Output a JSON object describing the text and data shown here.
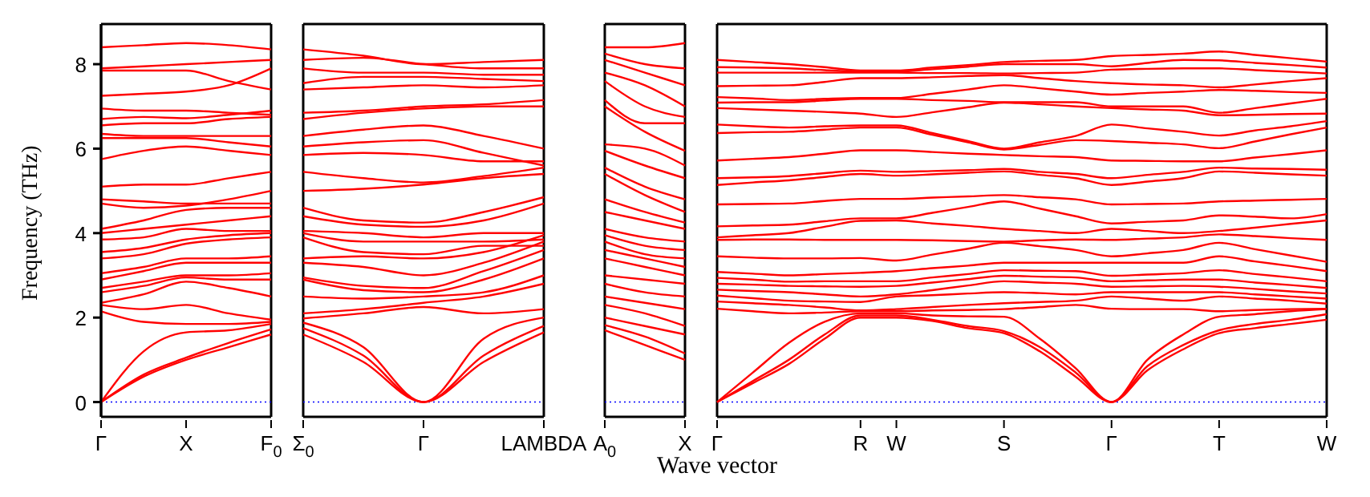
{
  "chart_data": [
    {
      "type": "line",
      "ylabel": "Frequency (THz)",
      "categories": [
        "Γ",
        null,
        "X",
        null,
        "F$_{0}$"
      ],
      "ylim": [
        -0.35,
        8.95
      ],
      "yticks": [
        0,
        2,
        4,
        6,
        8
      ],
      "marker": "none",
      "line_style": "solid",
      "ref_lines": [
        {
          "axis": "y",
          "value": 0,
          "color": "#0000ff",
          "line_style": "dotted"
        }
      ],
      "series": [
        {
          "color": "#ff0000",
          "values": [
            0,
            0.6,
            1.0,
            1.3,
            1.6
          ]
        },
        {
          "color": "#ff0000",
          "values": [
            0,
            0.65,
            1.05,
            1.4,
            1.72
          ]
        },
        {
          "color": "#ff0000",
          "values": [
            0,
            1.2,
            1.65,
            1.7,
            1.85
          ]
        },
        {
          "color": "#ff0000",
          "values": [
            2.15,
            1.9,
            1.85,
            1.85,
            1.9
          ]
        },
        {
          "color": "#ff0000",
          "values": [
            2.3,
            2.2,
            2.3,
            2.1,
            1.95
          ]
        },
        {
          "color": "#ff0000",
          "values": [
            2.35,
            2.55,
            2.85,
            2.7,
            2.5
          ]
        },
        {
          "color": "#ff0000",
          "values": [
            2.6,
            2.75,
            2.95,
            2.9,
            2.9
          ]
        },
        {
          "color": "#ff0000",
          "values": [
            2.7,
            2.85,
            3.0,
            3.0,
            3.05
          ]
        },
        {
          "color": "#ff0000",
          "values": [
            2.9,
            3.1,
            3.3,
            3.3,
            3.3
          ]
        },
        {
          "color": "#ff0000",
          "values": [
            3.05,
            3.2,
            3.4,
            3.4,
            3.45
          ]
        },
        {
          "color": "#ff0000",
          "values": [
            3.4,
            3.5,
            3.75,
            3.85,
            3.9
          ]
        },
        {
          "color": "#ff0000",
          "values": [
            3.55,
            3.65,
            3.85,
            3.95,
            4.0
          ]
        },
        {
          "color": "#ff0000",
          "values": [
            3.85,
            3.9,
            4.1,
            4.05,
            4.05
          ]
        },
        {
          "color": "#ff0000",
          "values": [
            4.0,
            4.1,
            4.2,
            4.3,
            4.4
          ]
        },
        {
          "color": "#ff0000",
          "values": [
            4.1,
            4.3,
            4.55,
            4.6,
            4.6
          ]
        },
        {
          "color": "#ff0000",
          "values": [
            4.7,
            4.6,
            4.65,
            4.8,
            5.0
          ]
        },
        {
          "color": "#ff0000",
          "values": [
            4.8,
            4.75,
            4.7,
            4.7,
            4.7
          ]
        },
        {
          "color": "#ff0000",
          "values": [
            5.1,
            5.15,
            5.15,
            5.3,
            5.45
          ]
        },
        {
          "color": "#ff0000",
          "values": [
            5.75,
            5.95,
            6.05,
            5.95,
            5.85
          ]
        },
        {
          "color": "#ff0000",
          "values": [
            6.25,
            6.25,
            6.25,
            6.15,
            6.05
          ]
        },
        {
          "color": "#ff0000",
          "values": [
            6.35,
            6.3,
            6.3,
            6.3,
            6.3
          ]
        },
        {
          "color": "#ff0000",
          "values": [
            6.55,
            6.6,
            6.6,
            6.7,
            6.75
          ]
        },
        {
          "color": "#ff0000",
          "values": [
            6.7,
            6.75,
            6.72,
            6.8,
            6.9
          ]
        },
        {
          "color": "#ff0000",
          "values": [
            6.95,
            6.9,
            6.9,
            6.85,
            6.8
          ]
        },
        {
          "color": "#ff0000",
          "values": [
            7.25,
            7.3,
            7.35,
            7.5,
            7.9
          ]
        },
        {
          "color": "#ff0000",
          "values": [
            7.85,
            7.85,
            7.85,
            7.6,
            7.4
          ]
        },
        {
          "color": "#ff0000",
          "values": [
            7.9,
            7.95,
            8.0,
            8.05,
            8.1
          ]
        },
        {
          "color": "#ff0000",
          "values": [
            8.4,
            8.45,
            8.5,
            8.45,
            8.35
          ]
        }
      ]
    },
    {
      "type": "line",
      "tick_labels": "x",
      "categories": [
        "Σ$_{0}$",
        null,
        "Γ",
        null,
        "LAMBDA"
      ],
      "ylim": [
        -0.35,
        8.95
      ],
      "yticks": [
        0,
        2,
        4,
        6,
        8
      ],
      "marker": "none",
      "line_style": "solid",
      "ref_lines": [
        {
          "axis": "y",
          "value": 0,
          "color": "#0000ff",
          "line_style": "dotted"
        }
      ],
      "series": [
        {
          "color": "#ff0000",
          "values": [
            1.6,
            0.95,
            0,
            0.95,
            1.65
          ]
        },
        {
          "color": "#ff0000",
          "values": [
            1.75,
            1.1,
            0,
            1.1,
            1.8
          ]
        },
        {
          "color": "#ff0000",
          "values": [
            1.88,
            1.3,
            0,
            1.5,
            2.0
          ]
        },
        {
          "color": "#ff0000",
          "values": [
            1.98,
            2.1,
            2.25,
            2.1,
            2.2
          ]
        },
        {
          "color": "#ff0000",
          "values": [
            2.1,
            2.2,
            2.35,
            2.5,
            2.8
          ]
        },
        {
          "color": "#ff0000",
          "values": [
            2.5,
            2.45,
            2.5,
            2.6,
            3.0
          ]
        },
        {
          "color": "#ff0000",
          "values": [
            2.9,
            2.65,
            2.6,
            2.9,
            3.4
          ]
        },
        {
          "color": "#ff0000",
          "values": [
            2.95,
            2.75,
            2.7,
            3.1,
            3.6
          ]
        },
        {
          "color": "#ff0000",
          "values": [
            3.3,
            3.2,
            3.0,
            3.3,
            3.8
          ]
        },
        {
          "color": "#ff0000",
          "values": [
            3.4,
            3.45,
            3.4,
            3.55,
            3.95
          ]
        },
        {
          "color": "#ff0000",
          "values": [
            3.9,
            3.55,
            3.5,
            3.7,
            3.7
          ]
        },
        {
          "color": "#ff0000",
          "values": [
            4.0,
            3.8,
            3.8,
            3.8,
            3.85
          ]
        },
        {
          "color": "#ff0000",
          "values": [
            4.05,
            4.0,
            3.9,
            4.0,
            4.0
          ]
        },
        {
          "color": "#ff0000",
          "values": [
            4.4,
            4.2,
            4.15,
            4.3,
            4.7
          ]
        },
        {
          "color": "#ff0000",
          "values": [
            4.6,
            4.3,
            4.25,
            4.5,
            4.85
          ]
        },
        {
          "color": "#ff0000",
          "values": [
            5.0,
            5.05,
            5.15,
            5.3,
            5.4
          ]
        },
        {
          "color": "#ff0000",
          "values": [
            5.45,
            5.3,
            5.2,
            5.35,
            5.55
          ]
        },
        {
          "color": "#ff0000",
          "values": [
            5.85,
            5.9,
            5.85,
            5.7,
            5.7
          ]
        },
        {
          "color": "#ff0000",
          "values": [
            6.05,
            6.15,
            6.2,
            5.9,
            5.6
          ]
        },
        {
          "color": "#ff0000",
          "values": [
            6.3,
            6.45,
            6.55,
            6.3,
            6.0
          ]
        },
        {
          "color": "#ff0000",
          "values": [
            6.7,
            6.85,
            6.95,
            7.0,
            7.0
          ]
        },
        {
          "color": "#ff0000",
          "values": [
            6.85,
            6.9,
            7.0,
            7.05,
            7.15
          ]
        },
        {
          "color": "#ff0000",
          "values": [
            7.4,
            7.45,
            7.5,
            7.45,
            7.5
          ]
        },
        {
          "color": "#ff0000",
          "values": [
            7.55,
            7.7,
            7.7,
            7.65,
            7.6
          ]
        },
        {
          "color": "#ff0000",
          "values": [
            7.9,
            7.8,
            7.8,
            7.75,
            7.75
          ]
        },
        {
          "color": "#ff0000",
          "values": [
            8.1,
            8.15,
            8.0,
            7.9,
            7.9
          ]
        },
        {
          "color": "#ff0000",
          "values": [
            8.35,
            8.2,
            8.0,
            8.05,
            8.1
          ]
        }
      ]
    },
    {
      "type": "line",
      "tick_labels": "x",
      "categories": [
        "A$_{0}$",
        null,
        "X"
      ],
      "ylim": [
        -0.35,
        8.95
      ],
      "yticks": [
        0,
        2,
        4,
        6,
        8
      ],
      "marker": "none",
      "line_style": "solid",
      "ref_lines": [
        {
          "axis": "y",
          "value": 0,
          "color": "#0000ff",
          "line_style": "dotted"
        }
      ],
      "series": [
        {
          "color": "#ff0000",
          "values": [
            1.7,
            1.35,
            1.0
          ]
        },
        {
          "color": "#ff0000",
          "values": [
            1.82,
            1.55,
            1.15
          ]
        },
        {
          "color": "#ff0000",
          "values": [
            2.0,
            1.8,
            1.6
          ]
        },
        {
          "color": "#ff0000",
          "values": [
            2.3,
            2.1,
            1.8
          ]
        },
        {
          "color": "#ff0000",
          "values": [
            2.5,
            2.35,
            2.2
          ]
        },
        {
          "color": "#ff0000",
          "values": [
            2.8,
            2.6,
            2.5
          ]
        },
        {
          "color": "#ff0000",
          "values": [
            3.0,
            2.9,
            2.8
          ]
        },
        {
          "color": "#ff0000",
          "values": [
            3.4,
            3.2,
            3.0
          ]
        },
        {
          "color": "#ff0000",
          "values": [
            3.6,
            3.4,
            3.2
          ]
        },
        {
          "color": "#ff0000",
          "values": [
            3.8,
            3.5,
            3.4
          ]
        },
        {
          "color": "#ff0000",
          "values": [
            3.95,
            3.7,
            3.6
          ]
        },
        {
          "color": "#ff0000",
          "values": [
            4.1,
            3.9,
            3.8
          ]
        },
        {
          "color": "#ff0000",
          "values": [
            4.5,
            4.3,
            4.1
          ]
        },
        {
          "color": "#ff0000",
          "values": [
            4.8,
            4.5,
            4.25
          ]
        },
        {
          "color": "#ff0000",
          "values": [
            5.4,
            4.9,
            4.5
          ]
        },
        {
          "color": "#ff0000",
          "values": [
            5.55,
            5.1,
            4.8
          ]
        },
        {
          "color": "#ff0000",
          "values": [
            5.95,
            5.6,
            5.3
          ]
        },
        {
          "color": "#ff0000",
          "values": [
            6.1,
            6.0,
            5.6
          ]
        },
        {
          "color": "#ff0000",
          "values": [
            7.0,
            6.4,
            5.95
          ]
        },
        {
          "color": "#ff0000",
          "values": [
            7.15,
            6.6,
            6.6
          ]
        },
        {
          "color": "#ff0000",
          "values": [
            7.6,
            7.0,
            6.75
          ]
        },
        {
          "color": "#ff0000",
          "values": [
            7.8,
            7.5,
            7.0
          ]
        },
        {
          "color": "#ff0000",
          "values": [
            8.1,
            7.8,
            7.5
          ]
        },
        {
          "color": "#ff0000",
          "values": [
            8.25,
            8.0,
            7.9
          ]
        },
        {
          "color": "#ff0000",
          "values": [
            8.4,
            8.4,
            8.5
          ]
        }
      ]
    },
    {
      "type": "line",
      "tick_labels": "x",
      "xlabel": "Wave vector",
      "categories": [
        "Γ",
        null,
        null,
        null,
        "R",
        "W",
        null,
        null,
        "S",
        null,
        null,
        "Γ",
        null,
        null,
        "T",
        null,
        null,
        "W"
      ],
      "ylim": [
        -0.35,
        8.95
      ],
      "yticks": [
        0,
        2,
        4,
        6,
        8
      ],
      "marker": "none",
      "line_style": "solid",
      "ref_lines": [
        {
          "axis": "y",
          "value": 0,
          "color": "#0000ff",
          "line_style": "dotted"
        }
      ],
      "series": [
        {
          "color": "#ff0000",
          "values": [
            0,
            0.45,
            0.9,
            1.5,
            2.0,
            2.0,
            1.92,
            1.75,
            1.63,
            1.2,
            0.6,
            0,
            0.75,
            1.25,
            1.63,
            1.75,
            1.85,
            1.95
          ]
        },
        {
          "color": "#ff0000",
          "values": [
            0,
            0.5,
            1.0,
            1.6,
            2.05,
            2.05,
            1.95,
            1.8,
            1.68,
            1.3,
            0.7,
            0,
            0.85,
            1.35,
            1.7,
            1.85,
            1.95,
            2.08
          ]
        },
        {
          "color": "#ff0000",
          "values": [
            0,
            0.7,
            1.4,
            1.9,
            2.1,
            2.1,
            2.05,
            2.03,
            2.02,
            1.5,
            0.8,
            0,
            1.0,
            1.6,
            2.02,
            2.08,
            2.15,
            2.2
          ]
        },
        {
          "color": "#ff0000",
          "values": [
            2.21,
            2.15,
            2.1,
            2.12,
            2.15,
            2.15,
            2.17,
            2.18,
            2.2,
            2.25,
            2.3,
            2.21,
            2.2,
            2.2,
            2.15,
            2.18,
            2.2,
            2.21
          ]
        },
        {
          "color": "#ff0000",
          "values": [
            2.38,
            2.34,
            2.3,
            2.24,
            2.17,
            2.2,
            2.25,
            2.3,
            2.34,
            2.37,
            2.4,
            2.5,
            2.45,
            2.4,
            2.5,
            2.45,
            2.4,
            2.33
          ]
        },
        {
          "color": "#ff0000",
          "values": [
            2.52,
            2.46,
            2.4,
            2.38,
            2.37,
            2.5,
            2.53,
            2.57,
            2.6,
            2.58,
            2.55,
            2.6,
            2.6,
            2.6,
            2.6,
            2.55,
            2.5,
            2.45
          ]
        },
        {
          "color": "#ff0000",
          "values": [
            2.66,
            2.63,
            2.6,
            2.55,
            2.5,
            2.55,
            2.65,
            2.76,
            2.86,
            2.83,
            2.8,
            2.73,
            2.74,
            2.75,
            2.73,
            2.68,
            2.62,
            2.57
          ]
        },
        {
          "color": "#ff0000",
          "values": [
            2.8,
            2.78,
            2.75,
            2.74,
            2.73,
            2.75,
            2.83,
            2.91,
            2.99,
            2.97,
            2.95,
            2.86,
            2.88,
            2.9,
            2.9,
            2.83,
            2.77,
            2.7
          ]
        },
        {
          "color": "#ff0000",
          "values": [
            2.94,
            2.9,
            2.85,
            2.86,
            2.86,
            2.86,
            2.95,
            3.03,
            3.12,
            3.11,
            3.1,
            2.99,
            3.02,
            3.05,
            3.12,
            3.03,
            2.95,
            2.86
          ]
        },
        {
          "color": "#ff0000",
          "values": [
            3.08,
            3.04,
            3.0,
            3.03,
            3.06,
            3.1,
            3.17,
            3.23,
            3.3,
            3.3,
            3.3,
            3.3,
            3.3,
            3.3,
            3.45,
            3.33,
            3.22,
            3.1
          ]
        },
        {
          "color": "#ff0000",
          "values": [
            3.45,
            3.42,
            3.4,
            3.4,
            3.41,
            3.35,
            3.49,
            3.63,
            3.77,
            3.69,
            3.6,
            3.45,
            3.52,
            3.6,
            3.77,
            3.62,
            3.47,
            3.32
          ]
        },
        {
          "color": "#ff0000",
          "values": [
            3.84,
            3.85,
            3.85,
            3.84,
            3.84,
            3.84,
            3.83,
            3.81,
            3.8,
            3.83,
            3.85,
            3.84,
            3.87,
            3.9,
            3.97,
            3.93,
            3.88,
            3.84
          ]
        },
        {
          "color": "#ff0000",
          "values": [
            3.9,
            3.95,
            4.0,
            4.15,
            4.29,
            4.3,
            4.23,
            4.17,
            4.1,
            4.05,
            4.0,
            4.1,
            4.05,
            4.0,
            4.05,
            4.13,
            4.22,
            4.3
          ]
        },
        {
          "color": "#ff0000",
          "values": [
            4.16,
            4.18,
            4.2,
            4.28,
            4.35,
            4.35,
            4.48,
            4.62,
            4.75,
            4.58,
            4.4,
            4.23,
            4.27,
            4.3,
            4.42,
            4.39,
            4.35,
            4.45
          ]
        },
        {
          "color": "#ff0000",
          "values": [
            4.68,
            4.69,
            4.7,
            4.76,
            4.81,
            4.81,
            4.84,
            4.87,
            4.9,
            4.85,
            4.8,
            4.68,
            4.69,
            4.7,
            4.75,
            4.77,
            4.79,
            4.81
          ]
        },
        {
          "color": "#ff0000",
          "values": [
            5.14,
            5.2,
            5.25,
            5.33,
            5.4,
            5.36,
            5.39,
            5.43,
            5.46,
            5.38,
            5.3,
            5.14,
            5.22,
            5.3,
            5.46,
            5.43,
            5.39,
            5.36
          ]
        },
        {
          "color": "#ff0000",
          "values": [
            5.3,
            5.32,
            5.35,
            5.42,
            5.48,
            5.45,
            5.47,
            5.49,
            5.52,
            5.45,
            5.4,
            5.3,
            5.38,
            5.45,
            5.55,
            5.53,
            5.52,
            5.5
          ]
        },
        {
          "color": "#ff0000",
          "values": [
            5.72,
            5.76,
            5.8,
            5.88,
            5.96,
            5.96,
            5.92,
            5.88,
            5.85,
            5.82,
            5.8,
            5.72,
            5.71,
            5.7,
            5.7,
            5.79,
            5.87,
            5.96
          ]
        },
        {
          "color": "#ff0000",
          "values": [
            6.37,
            6.39,
            6.4,
            6.45,
            6.5,
            6.5,
            6.33,
            6.15,
            5.98,
            6.09,
            6.2,
            6.18,
            6.14,
            6.1,
            6.01,
            6.17,
            6.34,
            6.5
          ]
        },
        {
          "color": "#ff0000",
          "values": [
            6.57,
            6.53,
            6.5,
            6.53,
            6.55,
            6.55,
            6.37,
            6.18,
            6.0,
            6.15,
            6.3,
            6.57,
            6.48,
            6.4,
            6.31,
            6.43,
            6.53,
            6.65
          ]
        },
        {
          "color": "#ff0000",
          "values": [
            6.96,
            6.93,
            6.9,
            6.87,
            6.83,
            6.75,
            6.86,
            6.98,
            7.09,
            7.05,
            7.0,
            6.96,
            6.93,
            6.9,
            6.79,
            6.8,
            6.82,
            6.83
          ]
        },
        {
          "color": "#ff0000",
          "values": [
            7.09,
            7.1,
            7.1,
            7.14,
            7.18,
            7.18,
            7.15,
            7.13,
            7.1,
            7.1,
            7.1,
            7.0,
            7.0,
            7.0,
            6.85,
            6.96,
            7.07,
            7.18
          ]
        },
        {
          "color": "#ff0000",
          "values": [
            7.22,
            7.19,
            7.15,
            7.18,
            7.2,
            7.2,
            7.3,
            7.4,
            7.5,
            7.43,
            7.35,
            7.28,
            7.32,
            7.35,
            7.39,
            7.37,
            7.34,
            7.32
          ]
        },
        {
          "color": "#ff0000",
          "values": [
            7.48,
            7.49,
            7.5,
            7.58,
            7.67,
            7.67,
            7.69,
            7.72,
            7.74,
            7.67,
            7.6,
            7.55,
            7.52,
            7.5,
            7.45,
            7.52,
            7.6,
            7.67
          ]
        },
        {
          "color": "#ff0000",
          "values": [
            7.8,
            7.8,
            7.8,
            7.8,
            7.8,
            7.8,
            7.79,
            7.79,
            7.78,
            7.79,
            7.8,
            7.87,
            7.89,
            7.9,
            7.9,
            7.86,
            7.82,
            7.78
          ]
        },
        {
          "color": "#ff0000",
          "values": [
            7.93,
            7.92,
            7.9,
            7.86,
            7.82,
            7.82,
            7.88,
            7.94,
            8.0,
            8.0,
            8.0,
            7.95,
            8.03,
            8.1,
            8.09,
            8.03,
            7.98,
            7.92
          ]
        },
        {
          "color": "#ff0000",
          "values": [
            8.1,
            8.05,
            8.0,
            7.93,
            7.85,
            7.85,
            7.92,
            7.98,
            8.05,
            8.08,
            8.1,
            8.19,
            8.22,
            8.25,
            8.3,
            8.22,
            8.14,
            8.06
          ]
        }
      ]
    }
  ]
}
